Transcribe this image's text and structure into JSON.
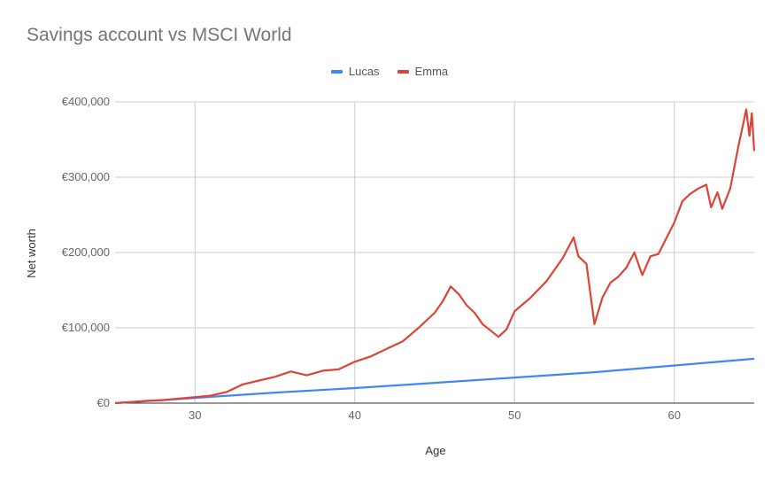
{
  "chart_data": {
    "type": "line",
    "title": "Savings account vs MSCI World",
    "xlabel": "Age",
    "ylabel": "Net worth",
    "xlim": [
      25,
      65
    ],
    "ylim": [
      0,
      400000
    ],
    "x_ticks": [
      {
        "value": 30,
        "label": "30"
      },
      {
        "value": 40,
        "label": "40"
      },
      {
        "value": 50,
        "label": "50"
      },
      {
        "value": 60,
        "label": "60"
      }
    ],
    "y_ticks": [
      {
        "value": 0,
        "label": "€0"
      },
      {
        "value": 100000,
        "label": "€100,000"
      },
      {
        "value": 200000,
        "label": "€200,000"
      },
      {
        "value": 300000,
        "label": "€300,000"
      },
      {
        "value": 400000,
        "label": "€400,000"
      }
    ],
    "grid": true,
    "legend_position": "top",
    "series": [
      {
        "name": "Lucas",
        "color": "#4285f4",
        "points": [
          [
            25,
            0
          ],
          [
            30,
            7000
          ],
          [
            35,
            14000
          ],
          [
            40,
            20000
          ],
          [
            45,
            27000
          ],
          [
            50,
            34000
          ],
          [
            55,
            41000
          ],
          [
            60,
            50000
          ],
          [
            65,
            59000
          ]
        ]
      },
      {
        "name": "Emma",
        "color": "#db4437",
        "points": [
          [
            25,
            0
          ],
          [
            26,
            1500
          ],
          [
            27,
            3000
          ],
          [
            28,
            4000
          ],
          [
            29,
            6000
          ],
          [
            30,
            8000
          ],
          [
            31,
            10000
          ],
          [
            32,
            15000
          ],
          [
            33,
            25000
          ],
          [
            34,
            30000
          ],
          [
            35,
            35000
          ],
          [
            36,
            42000
          ],
          [
            37,
            37000
          ],
          [
            38,
            43000
          ],
          [
            39,
            45000
          ],
          [
            40,
            55000
          ],
          [
            41,
            62000
          ],
          [
            42,
            72000
          ],
          [
            43,
            82000
          ],
          [
            44,
            100000
          ],
          [
            45,
            120000
          ],
          [
            45.5,
            135000
          ],
          [
            46,
            155000
          ],
          [
            46.5,
            145000
          ],
          [
            47,
            130000
          ],
          [
            47.5,
            120000
          ],
          [
            48,
            105000
          ],
          [
            49,
            88000
          ],
          [
            49.5,
            98000
          ],
          [
            50,
            122000
          ],
          [
            51,
            140000
          ],
          [
            52,
            162000
          ],
          [
            53,
            192000
          ],
          [
            53.7,
            220000
          ],
          [
            54,
            195000
          ],
          [
            54.5,
            185000
          ],
          [
            55,
            105000
          ],
          [
            55.5,
            140000
          ],
          [
            56,
            160000
          ],
          [
            56.5,
            168000
          ],
          [
            57,
            180000
          ],
          [
            57.5,
            200000
          ],
          [
            58,
            170000
          ],
          [
            58.5,
            195000
          ],
          [
            59,
            198000
          ],
          [
            60,
            240000
          ],
          [
            60.5,
            268000
          ],
          [
            61,
            278000
          ],
          [
            61.5,
            285000
          ],
          [
            62,
            290000
          ],
          [
            62.3,
            260000
          ],
          [
            62.7,
            280000
          ],
          [
            63,
            258000
          ],
          [
            63.5,
            285000
          ],
          [
            64,
            340000
          ],
          [
            64.3,
            370000
          ],
          [
            64.5,
            390000
          ],
          [
            64.7,
            355000
          ],
          [
            64.85,
            385000
          ],
          [
            65,
            335000
          ]
        ]
      }
    ]
  }
}
